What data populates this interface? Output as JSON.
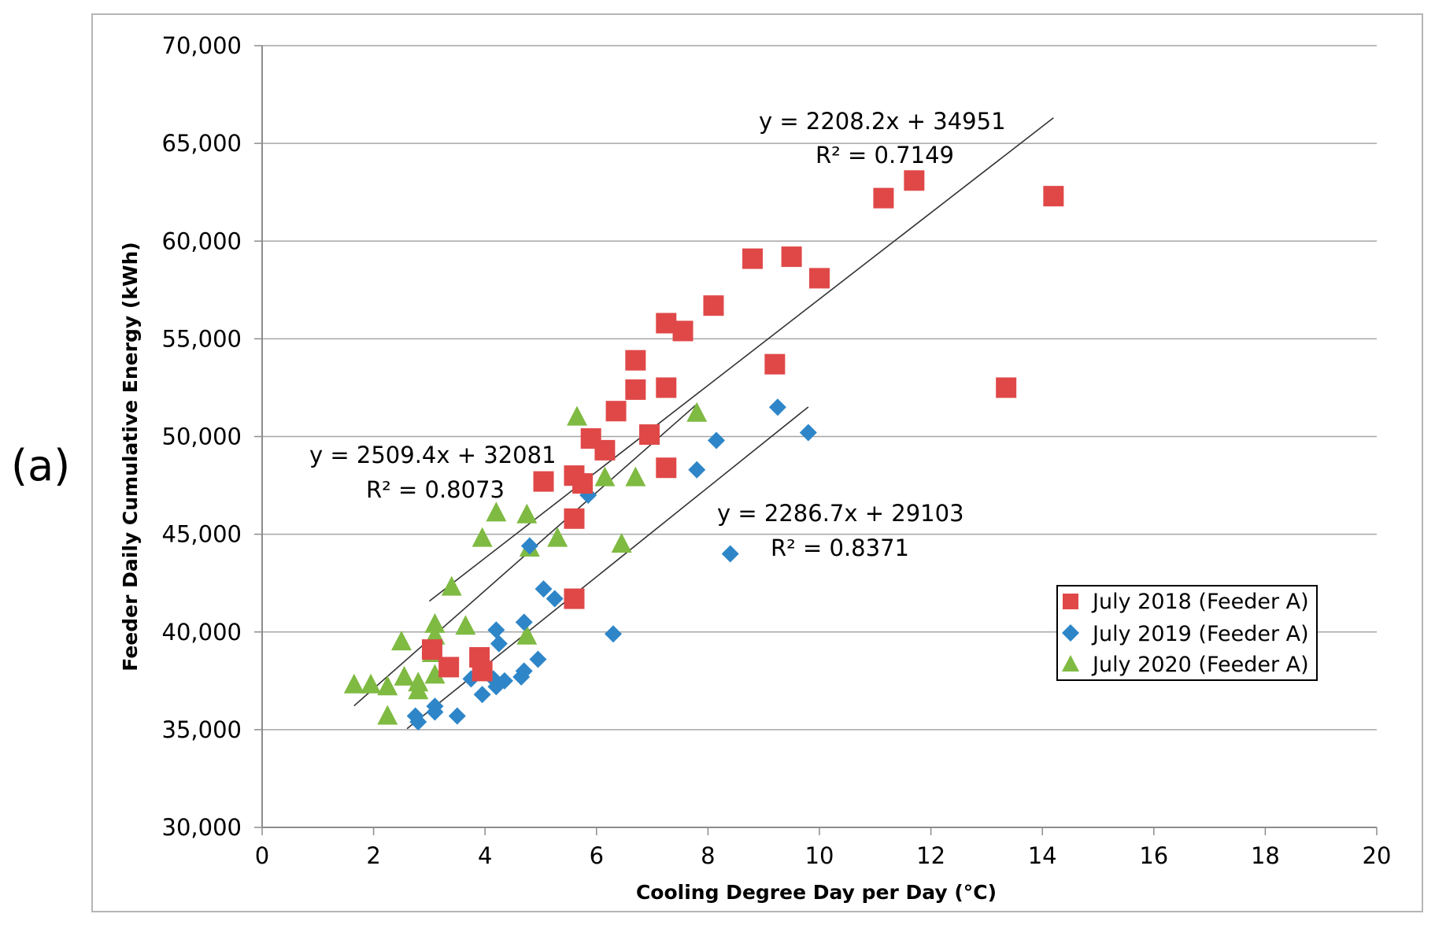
{
  "panel_label": "(a)",
  "chart_data": {
    "type": "scatter",
    "title": "",
    "xlabel": "Cooling Degree Day per Day (°C)",
    "ylabel": "Feeder Daily Cumulative Energy (kWh)",
    "xlim": [
      0,
      20
    ],
    "ylim": [
      30000,
      70000
    ],
    "x_ticks": [
      0,
      2,
      4,
      6,
      8,
      10,
      12,
      14,
      16,
      18,
      20
    ],
    "x_tick_labels": [
      "0",
      "2",
      "4",
      "6",
      "8",
      "10",
      "12",
      "14",
      "16",
      "18",
      "20"
    ],
    "y_ticks": [
      30000,
      35000,
      40000,
      45000,
      50000,
      55000,
      60000,
      65000,
      70000
    ],
    "y_tick_labels": [
      "30,000",
      "35,000",
      "40,000",
      "45,000",
      "50,000",
      "55,000",
      "60,000",
      "65,000",
      "70,000"
    ],
    "grid": true,
    "legend_position": "bottom-right",
    "series": [
      {
        "name": "July 2018 (Feeder A)",
        "marker": "square",
        "color": "#e04848",
        "points": [
          [
            3.05,
            39100
          ],
          [
            3.35,
            38200
          ],
          [
            3.9,
            38700
          ],
          [
            3.95,
            38000
          ],
          [
            5.05,
            47700
          ],
          [
            5.6,
            48000
          ],
          [
            5.6,
            45800
          ],
          [
            5.6,
            41700
          ],
          [
            5.75,
            47600
          ],
          [
            5.9,
            49900
          ],
          [
            6.15,
            49300
          ],
          [
            6.35,
            51300
          ],
          [
            6.7,
            53900
          ],
          [
            6.7,
            52400
          ],
          [
            6.95,
            50100
          ],
          [
            7.25,
            55800
          ],
          [
            7.25,
            52500
          ],
          [
            7.25,
            48400
          ],
          [
            7.55,
            55400
          ],
          [
            8.1,
            56700
          ],
          [
            8.8,
            59100
          ],
          [
            9.2,
            53700
          ],
          [
            9.5,
            59200
          ],
          [
            10.0,
            58100
          ],
          [
            11.15,
            62200
          ],
          [
            11.7,
            63100
          ],
          [
            13.35,
            52500
          ],
          [
            14.2,
            62300
          ]
        ],
        "trendline": {
          "equation": "y = 2208.2x  + 34951",
          "r2": "R² = 0.7149",
          "slope": 2208.2,
          "intercept": 34951,
          "x_range": [
            3.0,
            14.2
          ]
        }
      },
      {
        "name": "July 2019 (Feeder A)",
        "marker": "diamond",
        "color": "#2e86c8",
        "points": [
          [
            2.75,
            35700
          ],
          [
            2.8,
            35400
          ],
          [
            3.1,
            36200
          ],
          [
            3.1,
            35900
          ],
          [
            3.5,
            35700
          ],
          [
            3.75,
            37600
          ],
          [
            3.95,
            36800
          ],
          [
            4.15,
            37600
          ],
          [
            4.2,
            37200
          ],
          [
            4.2,
            40100
          ],
          [
            4.25,
            39400
          ],
          [
            4.35,
            37500
          ],
          [
            4.65,
            37700
          ],
          [
            4.7,
            38000
          ],
          [
            4.7,
            40500
          ],
          [
            4.8,
            44400
          ],
          [
            4.95,
            38600
          ],
          [
            5.05,
            42200
          ],
          [
            5.25,
            41700
          ],
          [
            5.85,
            47000
          ],
          [
            6.3,
            39900
          ],
          [
            7.8,
            48300
          ],
          [
            8.15,
            49800
          ],
          [
            8.4,
            44000
          ],
          [
            9.25,
            51500
          ],
          [
            9.8,
            50200
          ]
        ],
        "trendline": {
          "equation": "y = 2286.7x + 29103",
          "r2": "R² = 0.8371",
          "slope": 2286.7,
          "intercept": 29103,
          "x_range": [
            2.6,
            9.8
          ]
        }
      },
      {
        "name": "July 2020 (Feeder A)",
        "marker": "triangle",
        "color": "#7fba42",
        "points": [
          [
            1.65,
            37300
          ],
          [
            1.95,
            37300
          ],
          [
            2.25,
            37200
          ],
          [
            2.25,
            35700
          ],
          [
            2.5,
            39500
          ],
          [
            2.55,
            37700
          ],
          [
            2.8,
            37400
          ],
          [
            2.8,
            37000
          ],
          [
            3.05,
            38900
          ],
          [
            3.1,
            40400
          ],
          [
            3.1,
            39800
          ],
          [
            3.1,
            37800
          ],
          [
            3.4,
            42300
          ],
          [
            3.65,
            40300
          ],
          [
            3.95,
            44800
          ],
          [
            4.2,
            46100
          ],
          [
            4.75,
            46000
          ],
          [
            4.8,
            44300
          ],
          [
            4.75,
            39800
          ],
          [
            5.3,
            44800
          ],
          [
            5.65,
            51000
          ],
          [
            6.15,
            47900
          ],
          [
            6.45,
            44500
          ],
          [
            6.7,
            47900
          ],
          [
            7.8,
            51200
          ]
        ],
        "trendline": {
          "equation": "y = 2509.4x  + 32081",
          "r2": "R² = 0.8073",
          "slope": 2509.4,
          "intercept": 32081,
          "x_range": [
            1.65,
            7.8
          ]
        }
      }
    ]
  }
}
